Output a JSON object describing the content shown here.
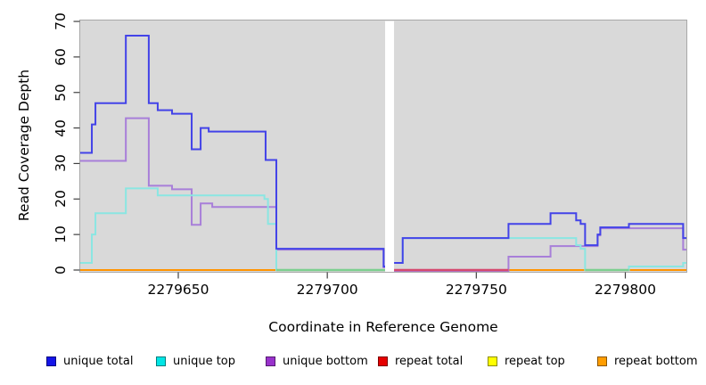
{
  "figure": {
    "x_axis_title": "Coordinate in Reference Genome",
    "y_axis_title": "Read Coverage Depth"
  },
  "chart_data": {
    "type": "line",
    "subtype": "step-coverage",
    "title": "",
    "xlabel": "Coordinate in Reference Genome",
    "ylabel": "Read Coverage Depth",
    "xlim": [
      2279617,
      2279820.5
    ],
    "ylim": [
      0,
      70
    ],
    "x_tick_values": [
      2279650,
      2279700,
      2279750,
      2279800
    ],
    "x_tick_labels": [
      "2279650",
      "2279700",
      "2279750",
      "2279800"
    ],
    "y_tick_values": [
      0,
      10,
      20,
      30,
      40,
      50,
      60,
      70
    ],
    "y_tick_labels": [
      "0",
      "10",
      "20",
      "30",
      "40",
      "50",
      "60",
      "70"
    ],
    "panel_background": "#d9d9d9",
    "panel_border_color": "#a8a8a8",
    "grid": "off",
    "legend_position": "bottom",
    "masked_region": {
      "from": 2279719.4,
      "to": 2279722.4,
      "color": "#ffffff"
    },
    "series": [
      {
        "name": "repeat total",
        "line_color": "#e03131",
        "swatch_color": "#e60000",
        "segments": [
          {
            "points": [
              [
                2279617,
                0
              ]
            ],
            "end": 2279719.4
          },
          {
            "points": [
              [
                2279722.4,
                0
              ]
            ],
            "end": 2279820.5
          }
        ]
      },
      {
        "name": "repeat top",
        "line_color": "#f5f533",
        "swatch_color": "#ffff00",
        "segments": [
          {
            "points": [
              [
                2279617,
                0
              ]
            ],
            "end": 2279719.4
          },
          {
            "points": [
              [
                2279722.4,
                0
              ]
            ],
            "end": 2279820.5
          }
        ]
      },
      {
        "name": "repeat bottom",
        "line_color": "#ff9300",
        "swatch_color": "#ff9d00",
        "segments": [
          {
            "points": [
              [
                2279617,
                0
              ]
            ],
            "end": 2279719.4
          },
          {
            "points": [
              [
                2279722.4,
                0
              ]
            ],
            "end": 2279820.5
          }
        ]
      },
      {
        "name": "unique bottom",
        "line_color": "#a87fd9",
        "swatch_color": "#9932cc",
        "segments": [
          {
            "points": [
              [
                2279617,
                31
              ],
              [
                2279632.4,
                43
              ],
              [
                2279640.1,
                24
              ],
              [
                2279647.9,
                23
              ],
              [
                2279654.5,
                13
              ],
              [
                2279657.5,
                19
              ],
              [
                2279661.4,
                18
              ],
              [
                2279682.9,
                6
              ],
              [
                2279718.9,
                1
              ]
            ],
            "end": 2279719.4
          },
          {
            "points": [
              [
                2279722.4,
                0
              ],
              [
                2279760.8,
                4
              ],
              [
                2279774.9,
                7
              ],
              [
                2279790.7,
                10
              ],
              [
                2279791.6,
                12
              ],
              [
                2279819.4,
                6
              ]
            ],
            "end": 2279820.5
          }
        ]
      },
      {
        "name": "unique top",
        "line_color": "#8ae6e2",
        "swatch_color": "#00e5e5",
        "segments": [
          {
            "points": [
              [
                2279617,
                2
              ],
              [
                2279621,
                10
              ],
              [
                2279622.2,
                16
              ],
              [
                2279632.4,
                23
              ],
              [
                2279643.1,
                21
              ],
              [
                2279678.9,
                20
              ],
              [
                2279680.1,
                13
              ],
              [
                2279682.9,
                0
              ]
            ],
            "end": 2279719.4
          },
          {
            "points": [
              [
                2279722.4,
                2
              ],
              [
                2279725.3,
                9
              ],
              [
                2279783.5,
                7
              ],
              [
                2279785,
                6
              ],
              [
                2279786.5,
                0
              ],
              [
                2279801.2,
                1
              ],
              [
                2279819.4,
                2
              ]
            ],
            "end": 2279820.5
          }
        ]
      },
      {
        "name": "unique total",
        "line_color": "#4343e8",
        "swatch_color": "#1414e8",
        "segments": [
          {
            "points": [
              [
                2279617,
                33
              ],
              [
                2279621,
                41
              ],
              [
                2279622.2,
                47
              ],
              [
                2279632.4,
                66
              ],
              [
                2279640.1,
                47
              ],
              [
                2279643.1,
                45
              ],
              [
                2279647.9,
                44
              ],
              [
                2279654.5,
                34
              ],
              [
                2279657.5,
                40
              ],
              [
                2279660.2,
                39
              ],
              [
                2279679.3,
                31
              ],
              [
                2279682.9,
                6
              ],
              [
                2279718.9,
                1
              ]
            ],
            "end": 2279719.4
          },
          {
            "points": [
              [
                2279722.4,
                2
              ],
              [
                2279725.3,
                9
              ],
              [
                2279760.8,
                13
              ],
              [
                2279774.9,
                16
              ],
              [
                2279783.5,
                14
              ],
              [
                2279785,
                13
              ],
              [
                2279786.5,
                7
              ],
              [
                2279790.7,
                10
              ],
              [
                2279791.6,
                12
              ],
              [
                2279801.2,
                13
              ],
              [
                2279819.4,
                9
              ]
            ],
            "end": 2279820.5
          }
        ]
      }
    ],
    "zero_line_blend_segments": [
      {
        "color": "#7ccf8f",
        "from": 2279682.9,
        "to": 2279719.4,
        "note": "cyan at 0 over orange"
      },
      {
        "color": "#7ccf8f",
        "from": 2279786.5,
        "to": 2279801.2,
        "note": "cyan at 0 over orange"
      },
      {
        "color": "#d6496f",
        "from": 2279722.4,
        "to": 2279760.8,
        "note": "bottom/total at 0 blend"
      }
    ],
    "legend": [
      {
        "label": "unique total",
        "color": "#1414e8"
      },
      {
        "label": "unique top",
        "color": "#00e5e5"
      },
      {
        "label": "unique bottom",
        "color": "#9932cc"
      },
      {
        "label": "repeat total",
        "color": "#e60000"
      },
      {
        "label": "repeat top",
        "color": "#ffff00"
      },
      {
        "label": "repeat bottom",
        "color": "#ff9d00"
      }
    ]
  }
}
